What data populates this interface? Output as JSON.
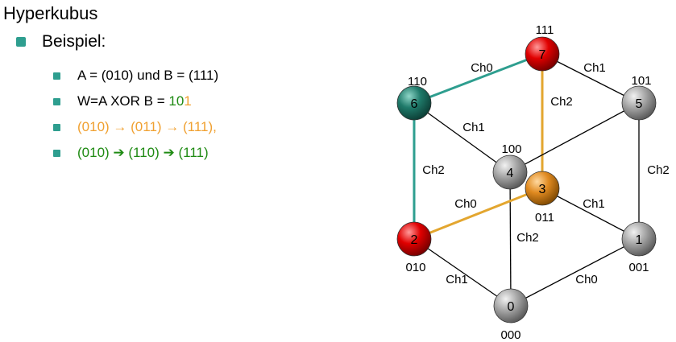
{
  "title": "Hyperkubus",
  "bullet": "Beispiel:",
  "items": [
    {
      "text": "A = (010) und B = (111)"
    },
    {
      "text_prefix": "W=A XOR B = ",
      "text_green": "10",
      "text_orange": "1"
    },
    {
      "text": "(010) → (011) → (111),"
    },
    {
      "text": "(010) ➔ (110) ➔ (111)"
    }
  ],
  "colors": {
    "teal": "#2e9e8f",
    "orange": "#f0a030",
    "green": "#1e8a12",
    "red": "#d80000",
    "gray": "#8a8a8a"
  },
  "diagram": {
    "nodes": [
      {
        "id": "0",
        "label": "000",
        "color": "gray"
      },
      {
        "id": "1",
        "label": "001",
        "color": "gray"
      },
      {
        "id": "2",
        "label": "010",
        "color": "red"
      },
      {
        "id": "3",
        "label": "011",
        "color": "orange"
      },
      {
        "id": "4",
        "label": "100",
        "color": "gray"
      },
      {
        "id": "5",
        "label": "101",
        "color": "gray"
      },
      {
        "id": "6",
        "label": "110",
        "color": "teal"
      },
      {
        "id": "7",
        "label": "111",
        "color": "red"
      }
    ],
    "edges": [
      {
        "from": "0",
        "to": "1",
        "label": "Ch0",
        "highlight": "none"
      },
      {
        "from": "0",
        "to": "2",
        "label": "Ch1",
        "highlight": "none"
      },
      {
        "from": "0",
        "to": "4",
        "label": "Ch2",
        "highlight": "none"
      },
      {
        "from": "1",
        "to": "3",
        "label": "Ch1",
        "highlight": "none"
      },
      {
        "from": "1",
        "to": "5",
        "label": "Ch2",
        "highlight": "none"
      },
      {
        "from": "2",
        "to": "3",
        "label": "Ch0",
        "highlight": "orange"
      },
      {
        "from": "2",
        "to": "6",
        "label": "Ch2",
        "highlight": "teal"
      },
      {
        "from": "3",
        "to": "7",
        "label": "Ch2",
        "highlight": "orange"
      },
      {
        "from": "4",
        "to": "5",
        "label": "",
        "highlight": "none"
      },
      {
        "from": "4",
        "to": "6",
        "label": "Ch1",
        "highlight": "none"
      },
      {
        "from": "5",
        "to": "7",
        "label": "Ch1",
        "highlight": "none"
      },
      {
        "from": "6",
        "to": "7",
        "label": "Ch0",
        "highlight": "teal"
      }
    ]
  }
}
